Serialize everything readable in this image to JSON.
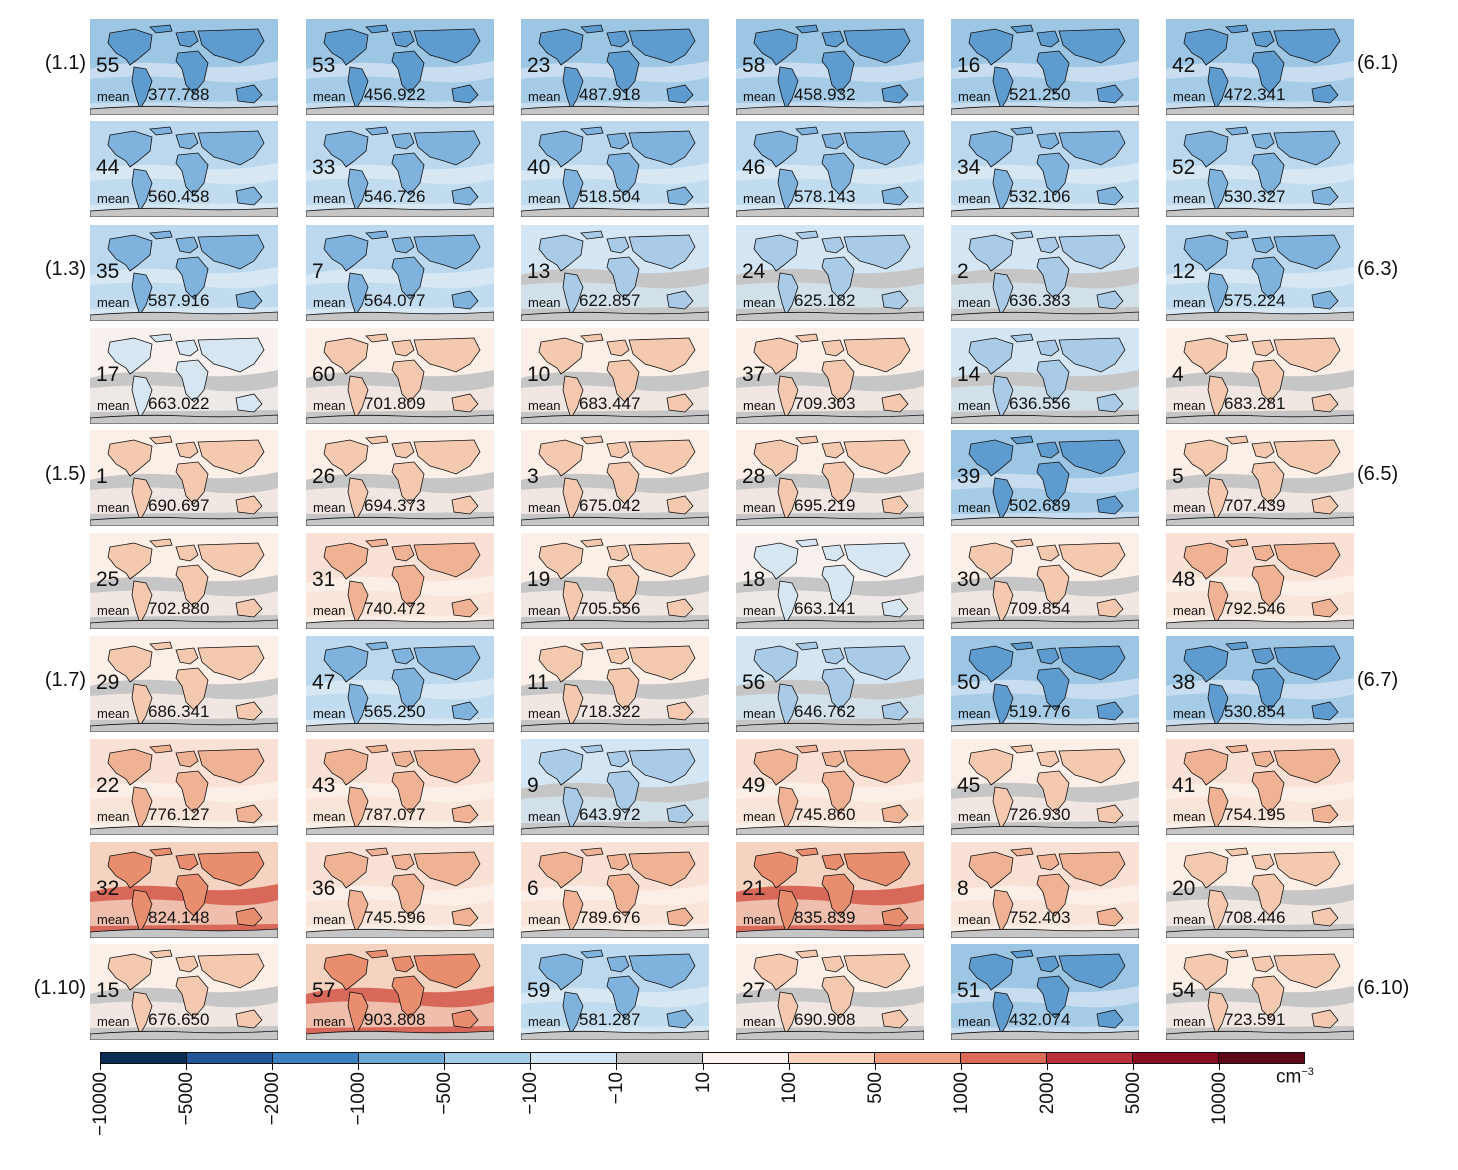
{
  "row_labels_left": [
    "(1.1)",
    "",
    "(1.3)",
    "",
    "(1.5)",
    "",
    "(1.7)",
    "",
    "",
    "(1.10)"
  ],
  "row_labels_right": [
    "(6.1)",
    "",
    "(6.3)",
    "",
    "(6.5)",
    "",
    "(6.7)",
    "",
    "",
    "(6.10)"
  ],
  "mean_label": "mean",
  "chart_data": {
    "type": "heatmap",
    "description_rows": 10,
    "description_cols": 6,
    "panels": [
      [
        {
          "id": "55",
          "mean": "377.788",
          "tone": -3
        },
        {
          "id": "53",
          "mean": "456.922",
          "tone": -3
        },
        {
          "id": "23",
          "mean": "487.918",
          "tone": -3
        },
        {
          "id": "58",
          "mean": "458.932",
          "tone": -3
        },
        {
          "id": "16",
          "mean": "521.250",
          "tone": -3
        },
        {
          "id": "42",
          "mean": "472.341",
          "tone": -3
        }
      ],
      [
        {
          "id": "44",
          "mean": "560.458",
          "tone": -2
        },
        {
          "id": "33",
          "mean": "546.726",
          "tone": -2
        },
        {
          "id": "40",
          "mean": "518.504",
          "tone": -2
        },
        {
          "id": "46",
          "mean": "578.143",
          "tone": -2
        },
        {
          "id": "34",
          "mean": "532.106",
          "tone": -2
        },
        {
          "id": "52",
          "mean": "530.327",
          "tone": -2
        }
      ],
      [
        {
          "id": "35",
          "mean": "587.916",
          "tone": -2
        },
        {
          "id": "7",
          "mean": "564.077",
          "tone": -2
        },
        {
          "id": "13",
          "mean": "622.857",
          "tone": -1
        },
        {
          "id": "24",
          "mean": "625.182",
          "tone": -1
        },
        {
          "id": "2",
          "mean": "636.383",
          "tone": -1
        },
        {
          "id": "12",
          "mean": "575.224",
          "tone": -2
        }
      ],
      [
        {
          "id": "17",
          "mean": "663.022",
          "tone": 0
        },
        {
          "id": "60",
          "mean": "701.809",
          "tone": 1
        },
        {
          "id": "10",
          "mean": "683.447",
          "tone": 1
        },
        {
          "id": "37",
          "mean": "709.303",
          "tone": 1
        },
        {
          "id": "14",
          "mean": "636.556",
          "tone": -1
        },
        {
          "id": "4",
          "mean": "683.281",
          "tone": 1
        }
      ],
      [
        {
          "id": "1",
          "mean": "690.697",
          "tone": 1
        },
        {
          "id": "26",
          "mean": "694.373",
          "tone": 1
        },
        {
          "id": "3",
          "mean": "675.042",
          "tone": 1
        },
        {
          "id": "28",
          "mean": "695.219",
          "tone": 1
        },
        {
          "id": "39",
          "mean": "502.689",
          "tone": -3
        },
        {
          "id": "5",
          "mean": "707.439",
          "tone": 1
        }
      ],
      [
        {
          "id": "25",
          "mean": "702.880",
          "tone": 1
        },
        {
          "id": "31",
          "mean": "740.472",
          "tone": 2
        },
        {
          "id": "19",
          "mean": "705.556",
          "tone": 1
        },
        {
          "id": "18",
          "mean": "663.141",
          "tone": 0
        },
        {
          "id": "30",
          "mean": "709.854",
          "tone": 1
        },
        {
          "id": "48",
          "mean": "792.546",
          "tone": 2
        }
      ],
      [
        {
          "id": "29",
          "mean": "686.341",
          "tone": 1
        },
        {
          "id": "47",
          "mean": "565.250",
          "tone": -2
        },
        {
          "id": "11",
          "mean": "718.322",
          "tone": 1
        },
        {
          "id": "56",
          "mean": "646.762",
          "tone": -1
        },
        {
          "id": "50",
          "mean": "519.776",
          "tone": -3
        },
        {
          "id": "38",
          "mean": "530.854",
          "tone": -3
        }
      ],
      [
        {
          "id": "22",
          "mean": "776.127",
          "tone": 2
        },
        {
          "id": "43",
          "mean": "787.077",
          "tone": 2
        },
        {
          "id": "9",
          "mean": "643.972",
          "tone": -1
        },
        {
          "id": "49",
          "mean": "745.860",
          "tone": 2
        },
        {
          "id": "45",
          "mean": "726.930",
          "tone": 1
        },
        {
          "id": "41",
          "mean": "754.195",
          "tone": 2
        }
      ],
      [
        {
          "id": "32",
          "mean": "824.148",
          "tone": 3
        },
        {
          "id": "36",
          "mean": "745.596",
          "tone": 2
        },
        {
          "id": "6",
          "mean": "789.676",
          "tone": 2
        },
        {
          "id": "21",
          "mean": "835.839",
          "tone": 3
        },
        {
          "id": "8",
          "mean": "752.403",
          "tone": 2
        },
        {
          "id": "20",
          "mean": "708.446",
          "tone": 1
        }
      ],
      [
        {
          "id": "15",
          "mean": "676.650",
          "tone": 1
        },
        {
          "id": "57",
          "mean": "903.808",
          "tone": 3
        },
        {
          "id": "59",
          "mean": "581.287",
          "tone": -2
        },
        {
          "id": "27",
          "mean": "690.908",
          "tone": 1
        },
        {
          "id": "51",
          "mean": "432.074",
          "tone": -3
        },
        {
          "id": "54",
          "mean": "723.591",
          "tone": 1
        }
      ]
    ],
    "colorbar": {
      "tick_labels": [
        "−10000",
        "−5000",
        "−2000",
        "−1000",
        "−500",
        "−100",
        "−10",
        "10",
        "100",
        "500",
        "1000",
        "2000",
        "5000",
        "10000"
      ],
      "unit": "cm",
      "unit_exp": "−3",
      "colors": [
        "#0b2d54",
        "#24579a",
        "#3b7fc0",
        "#6ea9d6",
        "#a3cbe6",
        "#d2e5f2",
        "#c6c6c6",
        "#fbf4f0",
        "#f7d1bb",
        "#ef9f82",
        "#db6a58",
        "#b9323b",
        "#8a0e22",
        "#5c0a15"
      ]
    }
  }
}
